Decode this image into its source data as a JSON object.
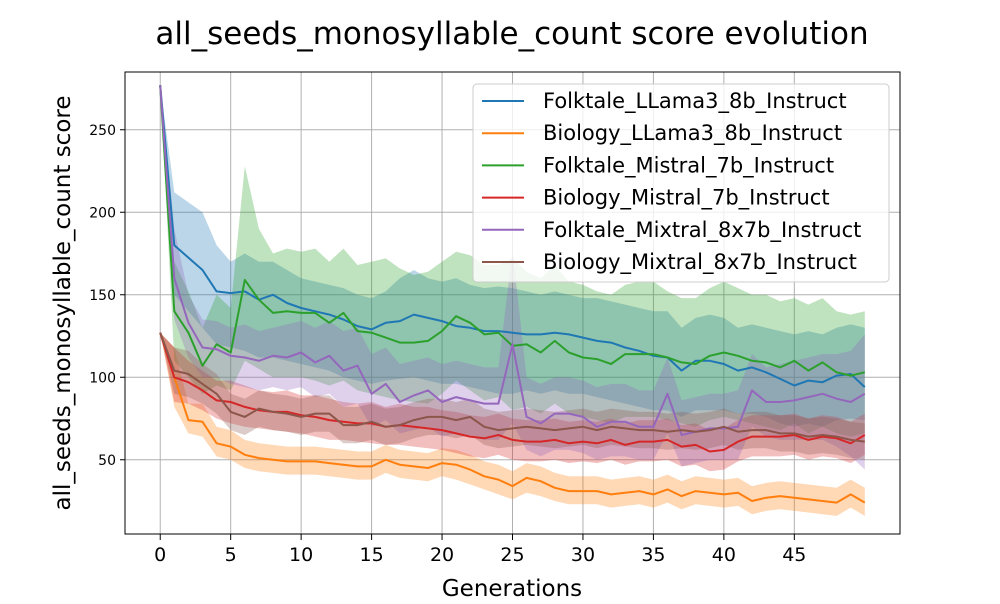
{
  "chart_data": {
    "type": "line",
    "title": "all_seeds_monosyllable_count score evolution",
    "xlabel": "Generations",
    "ylabel": "all_seeds_monosyllable_count score",
    "xlim": [
      -2.5,
      52.5
    ],
    "ylim": [
      5,
      285
    ],
    "xticks": [
      0,
      5,
      10,
      15,
      20,
      25,
      30,
      35,
      40,
      45
    ],
    "yticks": [
      50,
      100,
      150,
      200,
      250
    ],
    "grid": true,
    "legend_position": "top-right",
    "series": [
      {
        "name": "Folktale_LLama3_8b_Instruct",
        "color": "#1f77b4",
        "x": [
          0,
          1,
          3,
          4,
          5,
          6,
          7,
          8,
          9,
          10,
          11,
          12,
          13,
          14,
          15,
          16,
          17,
          18,
          19,
          20,
          21,
          22,
          23,
          24,
          25,
          26,
          27,
          28,
          29,
          30,
          31,
          32,
          33,
          34,
          35,
          36,
          37,
          38,
          39,
          40,
          41,
          42,
          43,
          44,
          45,
          46,
          47,
          48,
          49,
          50
        ],
        "values": [
          277,
          180,
          165,
          152,
          151,
          152,
          147,
          150,
          145,
          142,
          140,
          138,
          135,
          131,
          129,
          133,
          134,
          138,
          136,
          134,
          131,
          130,
          128,
          128,
          127,
          126,
          126,
          127,
          126,
          124,
          122,
          121,
          118,
          116,
          113,
          112,
          104,
          110,
          110,
          108,
          104,
          106,
          103,
          99,
          95,
          98,
          97,
          101,
          102,
          94
        ],
        "lower": [
          277,
          150,
          130,
          120,
          118,
          116,
          112,
          112,
          110,
          108,
          106,
          104,
          100,
          98,
          96,
          98,
          99,
          100,
          98,
          96,
          96,
          94,
          92,
          90,
          90,
          92,
          90,
          92,
          90,
          90,
          88,
          86,
          84,
          82,
          80,
          80,
          76,
          80,
          80,
          80,
          78,
          78,
          76,
          72,
          70,
          72,
          70,
          74,
          75,
          74
        ],
        "upper": [
          277,
          212,
          200,
          180,
          170,
          175,
          170,
          170,
          165,
          160,
          158,
          156,
          154,
          150,
          148,
          152,
          160,
          165,
          160,
          158,
          160,
          156,
          154,
          155,
          154,
          152,
          150,
          152,
          150,
          148,
          148,
          146,
          144,
          142,
          140,
          140,
          130,
          136,
          138,
          136,
          130,
          132,
          130,
          128,
          126,
          128,
          126,
          130,
          132,
          130
        ]
      },
      {
        "name": "Biology_LLama3_8b_Instruct",
        "color": "#ff7f0e",
        "x": [
          0,
          1,
          2,
          3,
          4,
          5,
          6,
          7,
          8,
          9,
          10,
          11,
          12,
          13,
          14,
          15,
          16,
          17,
          18,
          19,
          20,
          21,
          22,
          23,
          24,
          25,
          26,
          27,
          28,
          29,
          30,
          31,
          32,
          33,
          34,
          35,
          36,
          37,
          38,
          39,
          40,
          41,
          42,
          43,
          44,
          45,
          46,
          47,
          48,
          49,
          50
        ],
        "values": [
          127,
          100,
          74,
          73,
          60,
          58,
          53,
          51,
          50,
          49,
          49,
          49,
          48,
          47,
          46,
          46,
          50,
          47,
          46,
          45,
          48,
          47,
          44,
          40,
          38,
          34,
          39,
          37,
          33,
          31,
          31,
          31,
          29,
          30,
          31,
          29,
          32,
          28,
          31,
          30,
          29,
          30,
          25,
          27,
          28,
          27,
          26,
          25,
          24,
          29,
          24
        ],
        "lower": [
          127,
          82,
          66,
          64,
          52,
          50,
          45,
          43,
          42,
          41,
          41,
          41,
          40,
          39,
          38,
          38,
          42,
          39,
          38,
          37,
          40,
          38,
          35,
          32,
          29,
          26,
          30,
          28,
          25,
          23,
          23,
          23,
          21,
          22,
          23,
          21,
          24,
          20,
          23,
          22,
          21,
          22,
          17,
          19,
          20,
          19,
          18,
          17,
          16,
          21,
          16
        ],
        "upper": [
          127,
          118,
          84,
          84,
          70,
          68,
          62,
          60,
          59,
          58,
          58,
          58,
          57,
          56,
          55,
          55,
          59,
          56,
          55,
          54,
          57,
          56,
          53,
          49,
          47,
          43,
          48,
          46,
          42,
          40,
          40,
          40,
          38,
          39,
          40,
          38,
          41,
          37,
          40,
          39,
          38,
          39,
          34,
          36,
          37,
          36,
          35,
          34,
          33,
          38,
          33
        ]
      },
      {
        "name": "Folktale_Mistral_7b_Instruct",
        "color": "#2ca02c",
        "x": [
          0,
          1,
          2,
          3,
          4,
          5,
          6,
          7,
          8,
          9,
          10,
          11,
          12,
          13,
          14,
          15,
          16,
          17,
          18,
          19,
          20,
          21,
          22,
          23,
          24,
          25,
          26,
          27,
          28,
          29,
          30,
          31,
          32,
          33,
          34,
          35,
          36,
          37,
          38,
          39,
          40,
          41,
          42,
          43,
          44,
          45,
          46,
          47,
          48,
          49,
          50
        ],
        "values": [
          277,
          140,
          127,
          107,
          120,
          115,
          159,
          147,
          139,
          140,
          139,
          139,
          133,
          139,
          128,
          127,
          124,
          121,
          121,
          122,
          128,
          137,
          133,
          126,
          127,
          119,
          120,
          115,
          122,
          115,
          112,
          111,
          108,
          114,
          114,
          114,
          112,
          109,
          108,
          113,
          115,
          113,
          110,
          109,
          106,
          110,
          104,
          109,
          103,
          101,
          103
        ],
        "lower": [
          277,
          110,
          100,
          90,
          95,
          92,
          110,
          105,
          100,
          100,
          100,
          98,
          95,
          98,
          92,
          90,
          88,
          86,
          85,
          84,
          90,
          98,
          92,
          86,
          88,
          80,
          82,
          78,
          84,
          78,
          76,
          74,
          72,
          76,
          76,
          76,
          74,
          72,
          70,
          74,
          76,
          74,
          72,
          70,
          68,
          72,
          66,
          70,
          66,
          64,
          66
        ],
        "upper": [
          277,
          170,
          152,
          130,
          150,
          142,
          228,
          190,
          175,
          178,
          176,
          178,
          170,
          178,
          168,
          170,
          172,
          166,
          162,
          164,
          170,
          176,
          174,
          168,
          168,
          172,
          164,
          160,
          168,
          158,
          156,
          152,
          150,
          156,
          158,
          158,
          152,
          148,
          148,
          154,
          158,
          154,
          150,
          150,
          146,
          148,
          144,
          148,
          140,
          138,
          140
        ]
      },
      {
        "name": "Biology_Mistral_7b_Instruct",
        "color": "#d62728",
        "x": [
          0,
          1,
          2,
          3,
          4,
          5,
          6,
          7,
          8,
          9,
          10,
          11,
          12,
          13,
          14,
          15,
          16,
          17,
          18,
          19,
          20,
          21,
          22,
          23,
          24,
          25,
          26,
          27,
          28,
          29,
          30,
          31,
          32,
          33,
          34,
          35,
          36,
          37,
          38,
          39,
          40,
          41,
          42,
          43,
          44,
          45,
          46,
          47,
          48,
          49,
          50
        ],
        "values": [
          127,
          100,
          97,
          92,
          86,
          85,
          82,
          80,
          79,
          79,
          77,
          76,
          74,
          73,
          72,
          72,
          70,
          71,
          70,
          69,
          68,
          66,
          64,
          63,
          65,
          62,
          61,
          61,
          62,
          60,
          61,
          60,
          62,
          59,
          61,
          61,
          62,
          58,
          59,
          55,
          56,
          61,
          64,
          64,
          64,
          65,
          62,
          64,
          63,
          60,
          65
        ],
        "lower": [
          127,
          85,
          84,
          80,
          75,
          72,
          70,
          69,
          68,
          67,
          66,
          64,
          62,
          62,
          61,
          60,
          59,
          59,
          58,
          57,
          56,
          54,
          52,
          51,
          53,
          50,
          49,
          49,
          50,
          48,
          49,
          48,
          50,
          47,
          49,
          49,
          50,
          46,
          47,
          43,
          44,
          49,
          52,
          52,
          52,
          53,
          50,
          52,
          51,
          48,
          53
        ],
        "upper": [
          127,
          118,
          110,
          104,
          98,
          98,
          95,
          92,
          91,
          92,
          89,
          89,
          87,
          85,
          84,
          85,
          82,
          84,
          82,
          82,
          80,
          79,
          77,
          76,
          78,
          75,
          74,
          74,
          75,
          73,
          74,
          73,
          75,
          72,
          74,
          74,
          75,
          71,
          72,
          68,
          69,
          74,
          77,
          77,
          77,
          78,
          75,
          77,
          76,
          73,
          78
        ]
      },
      {
        "name": "Folktale_Mixtral_8x7b_Instruct",
        "color": "#9467bd",
        "x": [
          0,
          1,
          2,
          3,
          4,
          5,
          6,
          7,
          8,
          9,
          10,
          11,
          12,
          13,
          14,
          15,
          16,
          17,
          18,
          19,
          20,
          21,
          22,
          23,
          24,
          25,
          26,
          27,
          28,
          29,
          30,
          31,
          32,
          33,
          34,
          35,
          36,
          37,
          38,
          39,
          40,
          41,
          42,
          43,
          44,
          45,
          46,
          47,
          48,
          49,
          50
        ],
        "values": [
          277,
          160,
          133,
          118,
          117,
          113,
          112,
          110,
          113,
          112,
          115,
          109,
          113,
          104,
          107,
          90,
          96,
          85,
          89,
          92,
          85,
          88,
          86,
          84,
          84,
          120,
          76,
          72,
          78,
          78,
          76,
          70,
          73,
          73,
          70,
          70,
          90,
          65,
          67,
          69,
          69,
          70,
          92,
          85,
          85,
          86,
          88,
          90,
          87,
          85,
          90
        ],
        "lower": [
          277,
          135,
          112,
          100,
          100,
          96,
          94,
          92,
          94,
          92,
          94,
          88,
          90,
          82,
          84,
          70,
          74,
          66,
          68,
          70,
          64,
          66,
          64,
          62,
          62,
          72,
          56,
          52,
          56,
          56,
          54,
          50,
          52,
          52,
          50,
          50,
          66,
          46,
          48,
          50,
          50,
          50,
          70,
          64,
          62,
          62,
          62,
          62,
          58,
          52,
          44
        ],
        "upper": [
          277,
          190,
          150,
          135,
          134,
          130,
          132,
          128,
          130,
          132,
          134,
          130,
          134,
          128,
          130,
          114,
          118,
          108,
          110,
          112,
          108,
          110,
          108,
          106,
          106,
          177,
          100,
          96,
          100,
          100,
          98,
          94,
          96,
          96,
          92,
          92,
          112,
          86,
          88,
          90,
          90,
          92,
          114,
          106,
          108,
          110,
          112,
          114,
          114,
          116,
          126
        ]
      },
      {
        "name": "Biology_Mixtral_8x7b_Instruct",
        "color": "#8c564b",
        "x": [
          0,
          1,
          2,
          3,
          4,
          5,
          6,
          7,
          8,
          9,
          10,
          11,
          12,
          13,
          14,
          15,
          16,
          17,
          18,
          19,
          20,
          21,
          22,
          23,
          24,
          25,
          26,
          27,
          28,
          29,
          30,
          31,
          32,
          33,
          34,
          35,
          36,
          37,
          38,
          39,
          40,
          41,
          42,
          43,
          44,
          45,
          46,
          47,
          48,
          49,
          50
        ],
        "values": [
          127,
          104,
          102,
          96,
          90,
          79,
          76,
          81,
          79,
          78,
          76,
          78,
          78,
          71,
          71,
          73,
          70,
          71,
          74,
          76,
          76,
          74,
          76,
          70,
          68,
          69,
          70,
          69,
          68,
          69,
          70,
          68,
          70,
          69,
          68,
          68,
          67,
          68,
          67,
          68,
          70,
          67,
          68,
          68,
          66,
          66,
          64,
          65,
          64,
          62,
          61
        ],
        "lower": [
          127,
          90,
          88,
          84,
          78,
          68,
          65,
          70,
          68,
          67,
          65,
          67,
          67,
          60,
          60,
          62,
          59,
          60,
          63,
          65,
          65,
          63,
          65,
          59,
          57,
          58,
          59,
          58,
          57,
          58,
          59,
          57,
          59,
          58,
          57,
          57,
          56,
          57,
          56,
          57,
          59,
          56,
          57,
          57,
          55,
          55,
          53,
          54,
          53,
          51,
          50
        ],
        "upper": [
          127,
          118,
          116,
          108,
          102,
          90,
          87,
          92,
          90,
          89,
          87,
          89,
          89,
          82,
          82,
          84,
          81,
          82,
          85,
          87,
          87,
          85,
          87,
          81,
          79,
          80,
          81,
          80,
          79,
          80,
          81,
          79,
          81,
          80,
          79,
          79,
          78,
          79,
          78,
          79,
          81,
          78,
          79,
          79,
          77,
          77,
          75,
          76,
          75,
          73,
          72
        ]
      }
    ]
  }
}
